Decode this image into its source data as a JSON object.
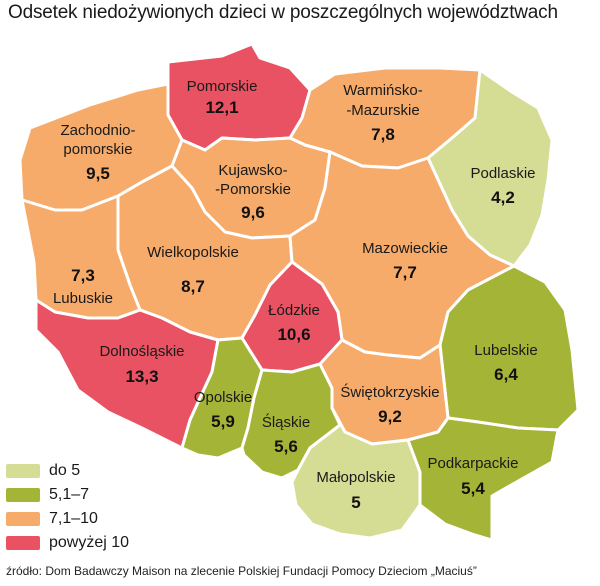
{
  "title": "Odsetek niedożywionych dzieci w poszczególnych województwach",
  "colors": {
    "low": "#d5dc94",
    "mid_low": "#a4b436",
    "mid_high": "#f6ab6a",
    "high": "#e85262"
  },
  "legend": [
    {
      "label": "do 5",
      "color": "#d5dc94"
    },
    {
      "label": "5,1–7",
      "color": "#a4b436"
    },
    {
      "label": "7,1–10",
      "color": "#f6ab6a"
    },
    {
      "label": "powyżej 10",
      "color": "#e85262"
    }
  ],
  "regions": {
    "pomorskie": {
      "name": "Pomorskie",
      "value": "12,1"
    },
    "warminsko_1": {
      "name": "Warmińsko-",
      "value": ""
    },
    "warminsko_2": {
      "name": "-Mazurskie",
      "value": "7,8"
    },
    "zachodnio_1": {
      "name": "Zachodnio-",
      "value": ""
    },
    "zachodnio_2": {
      "name": "pomorskie",
      "value": "9,5"
    },
    "kujawsko_1": {
      "name": "Kujawsko-",
      "value": ""
    },
    "kujawsko_2": {
      "name": "-Pomorskie",
      "value": "9,6"
    },
    "podlaskie": {
      "name": "Podlaskie",
      "value": "4,2"
    },
    "wielkopolskie": {
      "name": "Wielkopolskie",
      "value": "8,7"
    },
    "mazowieckie": {
      "name": "Mazowieckie",
      "value": "7,7"
    },
    "lubuskie": {
      "name": "Lubuskie",
      "value": "7,3"
    },
    "lodzkie": {
      "name": "Łódzkie",
      "value": "10,6"
    },
    "lubelskie": {
      "name": "Lubelskie",
      "value": "6,4"
    },
    "dolnoslaskie": {
      "name": "Dolnośląskie",
      "value": "13,3"
    },
    "opolskie": {
      "name": "Opolskie",
      "value": "5,9"
    },
    "slaskie": {
      "name": "Śląskie",
      "value": "5,6"
    },
    "swietokrzyskie": {
      "name": "Świętokrzyskie",
      "value": "9,2"
    },
    "malopolskie": {
      "name": "Małopolskie",
      "value": "5"
    },
    "podkarpackie": {
      "name": "Podkarpackie",
      "value": "5,4"
    }
  },
  "source": "źródło: Dom Badawczy Maison na zlecenie Polskiej Fundacji Pomocy Dzieciom „Maciuś”"
}
